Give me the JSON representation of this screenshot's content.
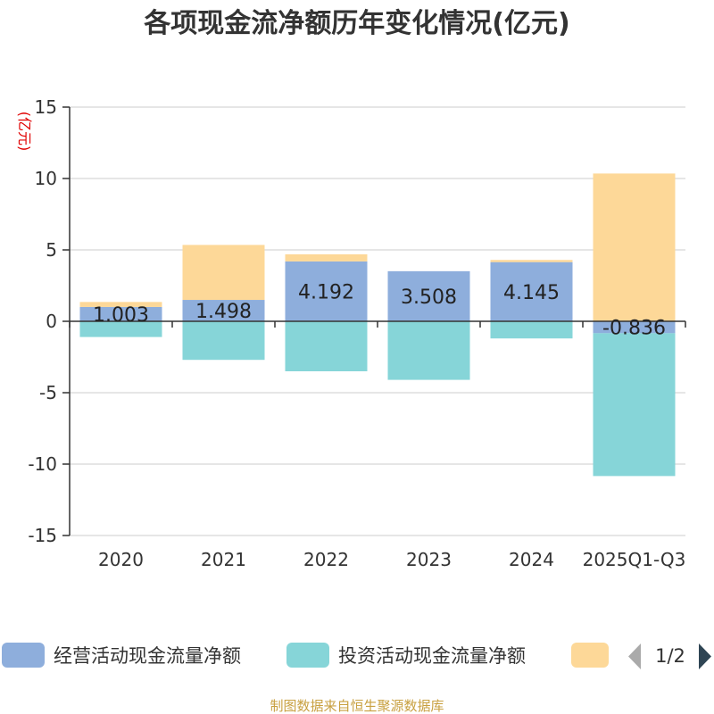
{
  "chart_data": {
    "type": "bar",
    "stacked": true,
    "title": "各项现金流净额历年变化情况(亿元)",
    "ylabel": "(亿元)",
    "xlabel": "",
    "ylim": [
      -15,
      15
    ],
    "yticks": [
      15,
      10,
      5,
      0,
      -5,
      -10,
      -15
    ],
    "grid": true,
    "categories": [
      "2020",
      "2021",
      "2022",
      "2023",
      "2024",
      "2025Q1-Q3"
    ],
    "series": [
      {
        "name": "经营活动现金流量净额",
        "color": "#8eaedc",
        "values": [
          1.003,
          1.498,
          4.192,
          3.508,
          4.145,
          -0.836
        ]
      },
      {
        "name": "投资活动现金流量净额",
        "color": "#86d5d8",
        "values": [
          -1.1,
          -2.7,
          -3.5,
          -4.1,
          -1.2,
          -10.0
        ]
      },
      {
        "name": "",
        "color": "#fdd898",
        "values": [
          0.35,
          3.85,
          0.5,
          0.0,
          0.15,
          10.35
        ]
      }
    ],
    "data_labels": [
      "1.003",
      "1.498",
      "4.192",
      "3.508",
      "4.145",
      "-0.836"
    ],
    "legend": {
      "position": "bottom",
      "page": "1/2"
    }
  },
  "source_text": "制图数据来自恒生聚源数据库"
}
